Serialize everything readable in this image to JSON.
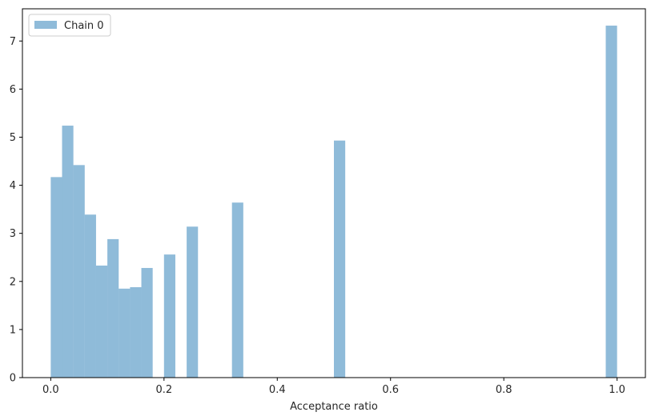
{
  "chart_data": {
    "type": "bar",
    "title": "",
    "xlabel": "Acceptance ratio",
    "ylabel": "",
    "xlim": [
      -0.05,
      1.05
    ],
    "ylim": [
      0,
      7.67
    ],
    "bin_width": 0.02,
    "xticks": [
      0.0,
      0.2,
      0.4,
      0.6,
      0.8,
      1.0
    ],
    "xtick_labels": [
      "0.0",
      "0.2",
      "0.4",
      "0.6",
      "0.8",
      "1.0"
    ],
    "yticks": [
      0,
      1,
      2,
      3,
      4,
      5,
      6,
      7
    ],
    "ytick_labels": [
      "0",
      "1",
      "2",
      "3",
      "4",
      "5",
      "6",
      "7"
    ],
    "grid": false,
    "legend_position": "top-left",
    "series": [
      {
        "name": "Chain 0",
        "color": "#1f77b4",
        "opacity": 0.5,
        "bins": [
          {
            "x0": 0.0,
            "x1": 0.02,
            "value": 4.17
          },
          {
            "x0": 0.02,
            "x1": 0.04,
            "value": 5.24
          },
          {
            "x0": 0.04,
            "x1": 0.06,
            "value": 4.42
          },
          {
            "x0": 0.06,
            "x1": 0.08,
            "value": 3.39
          },
          {
            "x0": 0.08,
            "x1": 0.1,
            "value": 2.33
          },
          {
            "x0": 0.1,
            "x1": 0.12,
            "value": 2.88
          },
          {
            "x0": 0.12,
            "x1": 0.14,
            "value": 1.85
          },
          {
            "x0": 0.14,
            "x1": 0.16,
            "value": 1.88
          },
          {
            "x0": 0.16,
            "x1": 0.18,
            "value": 2.28
          },
          {
            "x0": 0.2,
            "x1": 0.22,
            "value": 2.56
          },
          {
            "x0": 0.24,
            "x1": 0.26,
            "value": 3.14
          },
          {
            "x0": 0.32,
            "x1": 0.34,
            "value": 3.64
          },
          {
            "x0": 0.5,
            "x1": 0.52,
            "value": 4.93
          },
          {
            "x0": 0.98,
            "x1": 1.0,
            "value": 7.32
          }
        ]
      }
    ]
  }
}
